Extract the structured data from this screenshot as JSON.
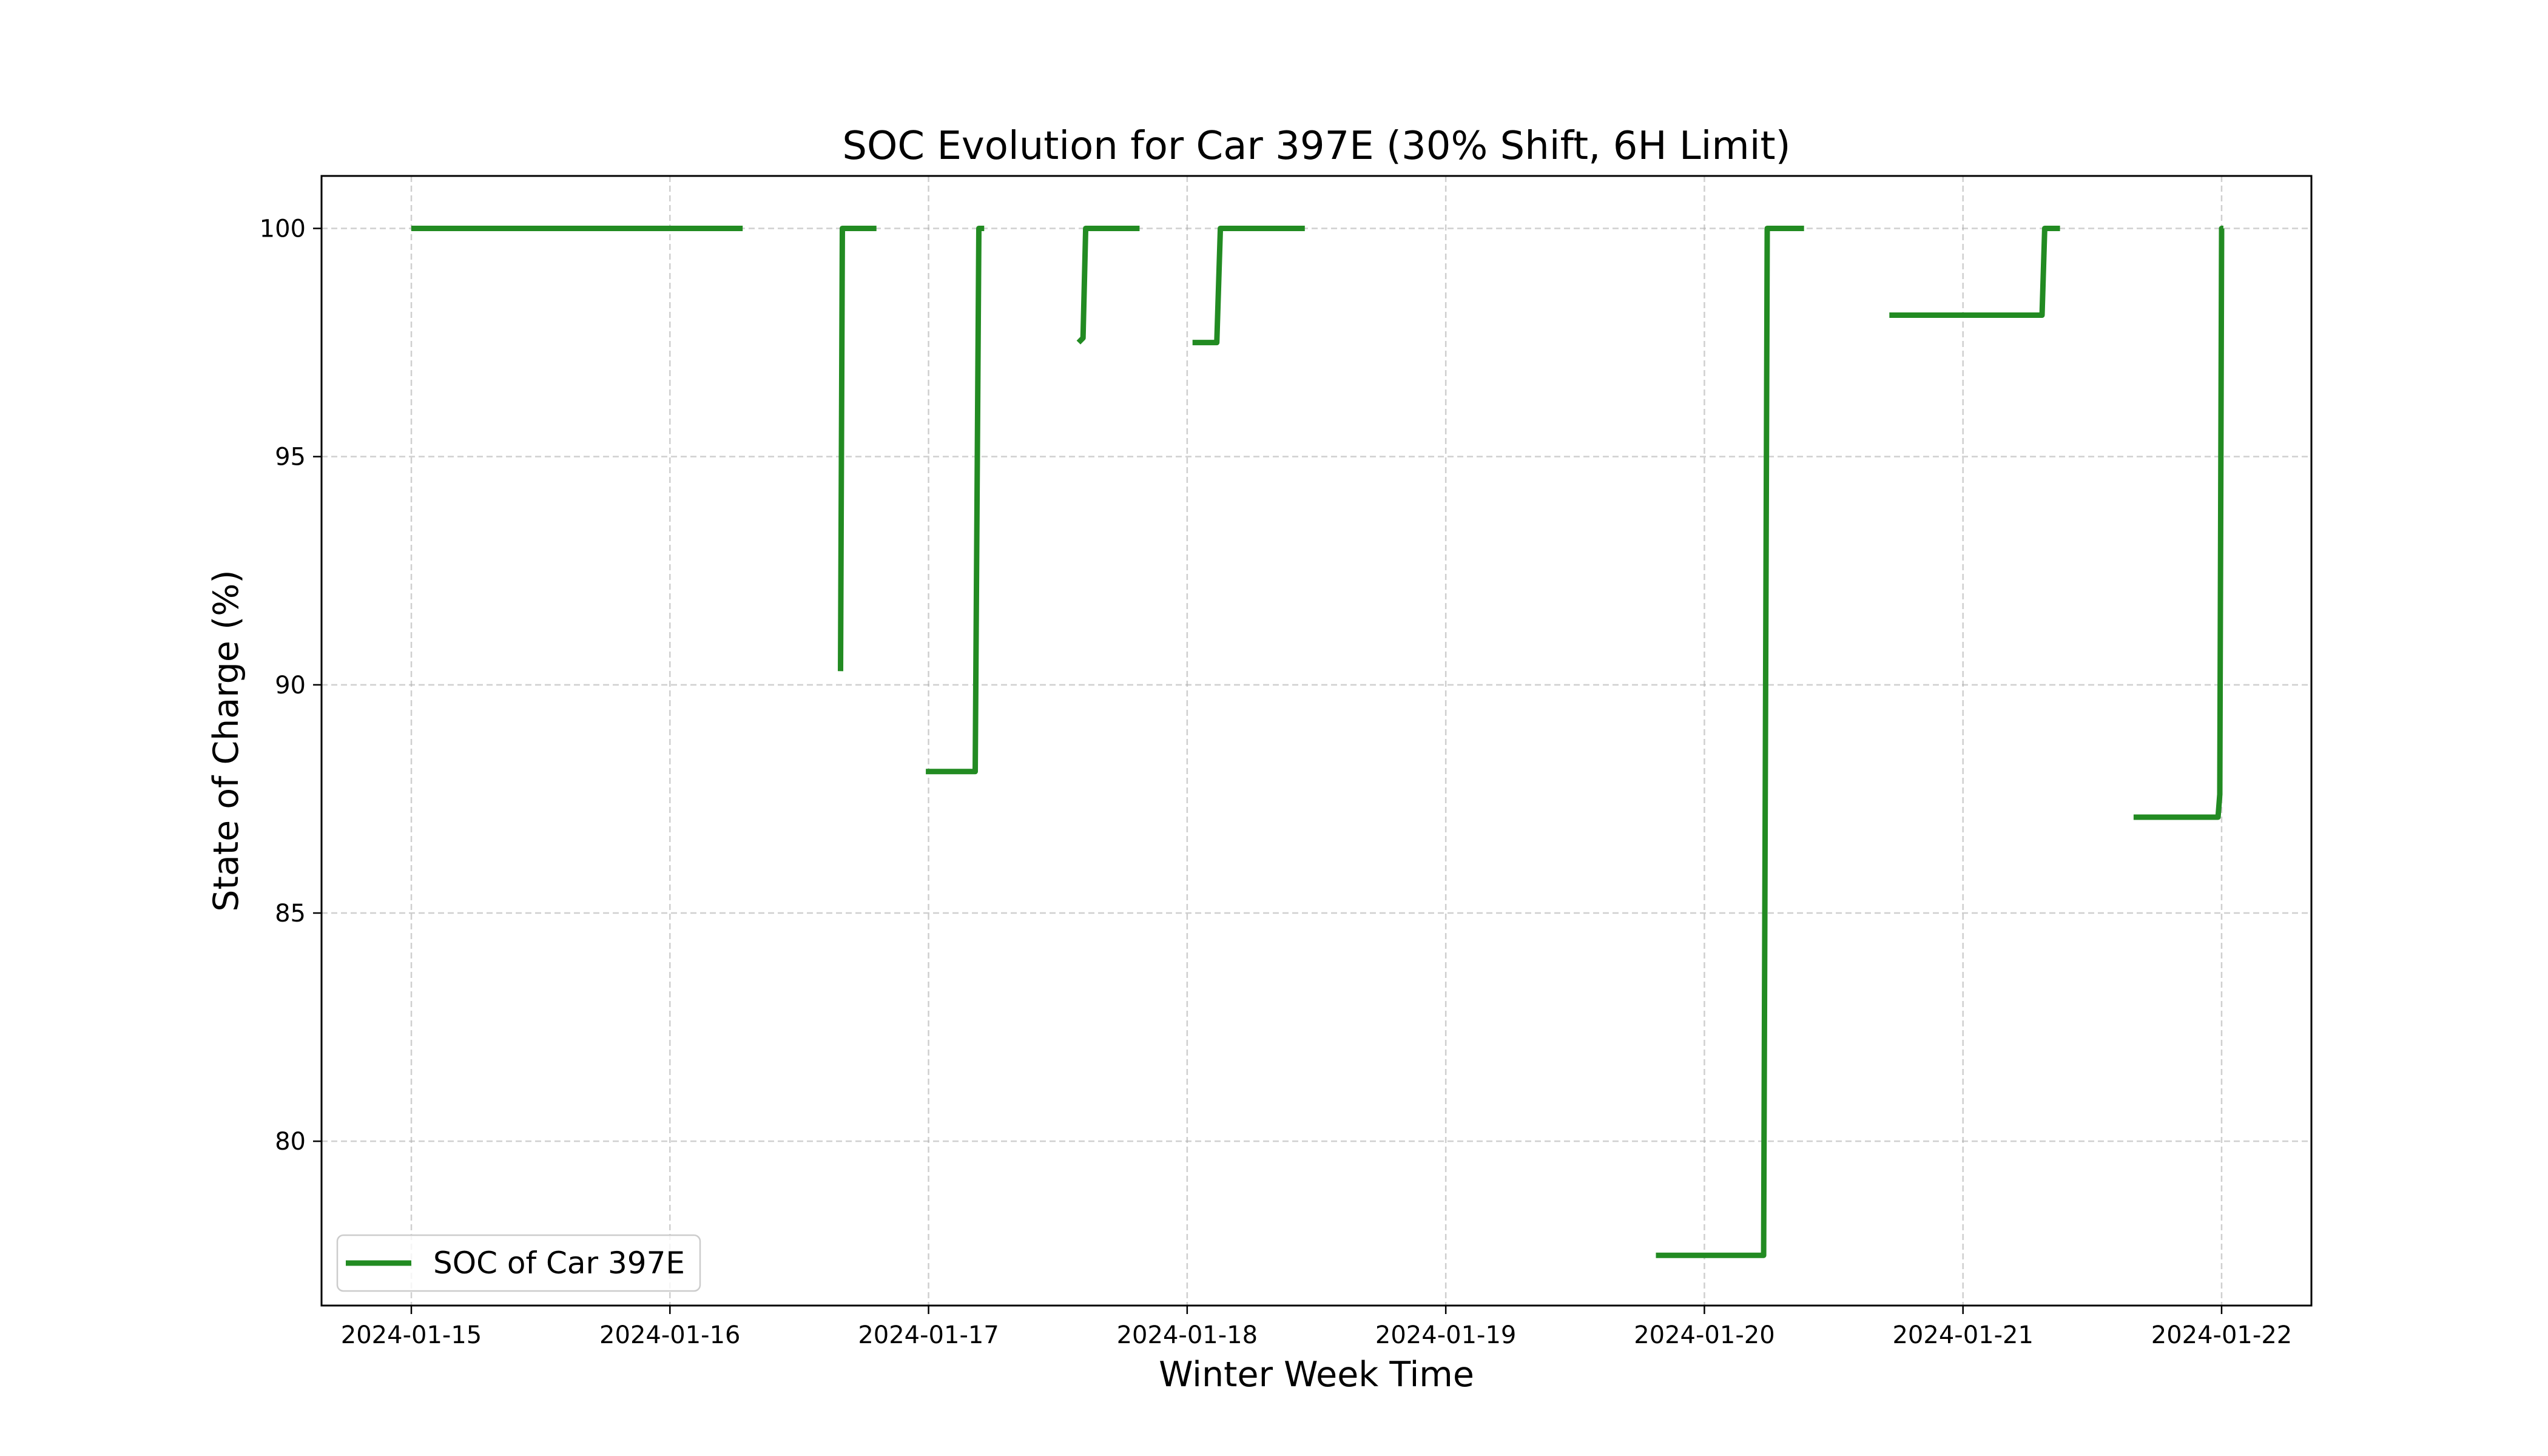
{
  "chart_data": {
    "type": "line",
    "title": "SOC Evolution for Car 397E (30% Shift, 6H Limit)",
    "xlabel": "Winter Week Time",
    "ylabel": "State of Charge (%)",
    "x_ticks": [
      "2024-01-15",
      "2024-01-16",
      "2024-01-17",
      "2024-01-18",
      "2024-01-19",
      "2024-01-20",
      "2024-01-21",
      "2024-01-22"
    ],
    "y_ticks": [
      80,
      85,
      90,
      95,
      100
    ],
    "xlim": [
      "2024-01-14 15:40",
      "2024-01-22 08:20"
    ],
    "ylim": [
      76.4,
      101.15
    ],
    "grid": true,
    "legend_position": "lower left",
    "colors": {
      "series": "#228b22"
    },
    "series": [
      {
        "name": "SOC of Car 397E",
        "segments": [
          [
            [
              "2024-01-15 00:00",
              100
            ],
            [
              "2024-01-16 06:45",
              100
            ]
          ],
          [
            [
              "2024-01-16 15:50",
              90.3
            ],
            [
              "2024-01-16 16:00",
              100
            ],
            [
              "2024-01-16 19:10",
              100
            ]
          ],
          [
            [
              "2024-01-16 23:45",
              88.1
            ],
            [
              "2024-01-17 04:20",
              88.1
            ],
            [
              "2024-01-17 04:40",
              100
            ],
            [
              "2024-01-17 05:10",
              100
            ]
          ],
          [
            [
              "2024-01-17 13:55",
              97.5
            ],
            [
              "2024-01-17 14:20",
              97.6
            ],
            [
              "2024-01-17 14:35",
              100
            ],
            [
              "2024-01-17 19:35",
              100
            ]
          ],
          [
            [
              "2024-01-18 00:30",
              97.5
            ],
            [
              "2024-01-18 02:45",
              97.5
            ],
            [
              "2024-01-18 03:05",
              100
            ],
            [
              "2024-01-18 10:55",
              100
            ]
          ],
          [
            [
              "2024-01-19 19:30",
              77.5
            ],
            [
              "2024-01-20 05:30",
              77.5
            ],
            [
              "2024-01-20 05:50",
              100
            ],
            [
              "2024-01-20 09:15",
              100
            ]
          ],
          [
            [
              "2024-01-20 17:10",
              98.1
            ],
            [
              "2024-01-21 07:20",
              98.1
            ],
            [
              "2024-01-21 07:35",
              100
            ],
            [
              "2024-01-21 09:00",
              100
            ]
          ],
          [
            [
              "2024-01-21 15:50",
              87.1
            ],
            [
              "2024-01-21 23:40",
              87.1
            ],
            [
              "2024-01-21 23:50",
              87.6
            ],
            [
              "2024-01-22 00:00",
              100
            ],
            [
              "2024-01-22 00:10",
              100
            ]
          ]
        ]
      }
    ]
  }
}
